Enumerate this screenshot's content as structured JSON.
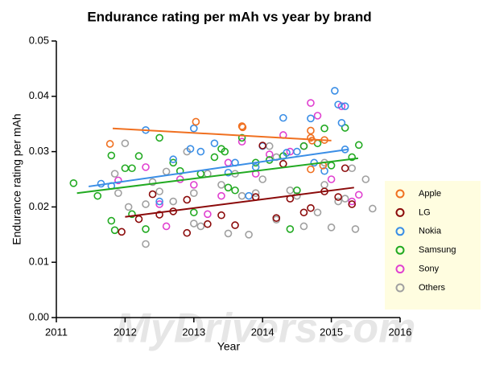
{
  "chart_data": {
    "type": "scatter",
    "title": "Endurance rating per mAh vs year by brand",
    "x_label": "Year",
    "y_label": "Endurance rating per mAh",
    "watermark": "MyDrivers.com",
    "xlim": [
      2011,
      2016
    ],
    "xticks": [
      2011,
      2012,
      2013,
      2014,
      2015,
      2016
    ],
    "ylim": [
      0,
      0.05
    ],
    "yticks": [
      {
        "value": 0,
        "label": "0.00"
      },
      0.01,
      0.02,
      0.03,
      0.04,
      0.05
    ],
    "grid": false,
    "legend": "right",
    "series": [
      {
        "name": "Apple",
        "color": "#f07020",
        "x": [
          2011.78,
          2013.03,
          2013.7,
          2013.71,
          2014.7,
          2014.7,
          2014.72,
          2014.7,
          2014.88,
          2014.9
        ],
        "y": [
          0.0314,
          0.0354,
          0.0346,
          0.0344,
          0.0338,
          0.0325,
          0.032,
          0.0268,
          0.0275,
          0.0321
        ],
        "trend": {
          "x": [
            2011.82,
            2015.0
          ],
          "y": [
            0.0342,
            0.032
          ]
        }
      },
      {
        "name": "LG",
        "color": "#8b0a0a",
        "x": [
          2011.95,
          2012.2,
          2012.4,
          2012.5,
          2012.7,
          2012.9,
          2012.9,
          2013.2,
          2013.4,
          2013.6,
          2013.9,
          2014.0,
          2014.2,
          2014.3,
          2014.4,
          2014.6,
          2014.9,
          2015.2,
          2015.3,
          2015.1,
          2014.7
        ],
        "y": [
          0.0155,
          0.0178,
          0.0223,
          0.0186,
          0.0192,
          0.0153,
          0.0213,
          0.0169,
          0.0185,
          0.0167,
          0.0218,
          0.0311,
          0.018,
          0.0278,
          0.0215,
          0.019,
          0.0228,
          0.027,
          0.0205,
          0.0218,
          0.0198
        ],
        "trend": {
          "x": [
            2012.0,
            2015.33
          ],
          "y": [
            0.0182,
            0.0235
          ]
        }
      },
      {
        "name": "Nokia",
        "color": "#3a8ee6",
        "x": [
          2011.65,
          2011.8,
          2012.3,
          2012.5,
          2012.7,
          2012.95,
          2013.0,
          2013.1,
          2013.3,
          2013.5,
          2013.6,
          2013.8,
          2014.0,
          2014.3,
          2014.35,
          2014.5,
          2014.7,
          2014.75,
          2015.05,
          2015.1,
          2015.15,
          2015.2,
          2015.2,
          2014.9,
          2013.9
        ],
        "y": [
          0.0242,
          0.0238,
          0.0339,
          0.021,
          0.0286,
          0.0305,
          0.0342,
          0.03,
          0.0315,
          0.0262,
          0.028,
          0.022,
          0.031,
          0.0361,
          0.0298,
          0.03,
          0.036,
          0.028,
          0.041,
          0.0385,
          0.0352,
          0.0382,
          0.0304,
          0.0265,
          0.0272
        ],
        "trend": {
          "x": [
            2011.47,
            2015.24
          ],
          "y": [
            0.0237,
            0.0304
          ]
        }
      },
      {
        "name": "Samsung",
        "color": "#22aa22",
        "x": [
          2011.25,
          2011.6,
          2011.8,
          2011.8,
          2011.85,
          2012.0,
          2012.1,
          2012.2,
          2012.3,
          2012.5,
          2012.7,
          2012.8,
          2013.0,
          2013.1,
          2013.3,
          2013.4,
          2013.5,
          2013.6,
          2013.7,
          2013.9,
          2014.1,
          2014.3,
          2014.4,
          2014.5,
          2014.6,
          2014.8,
          2014.9,
          2015.0,
          2015.2,
          2015.3,
          2015.4,
          2012.1,
          2013.45
        ],
        "y": [
          0.0243,
          0.022,
          0.0293,
          0.0175,
          0.0158,
          0.027,
          0.0187,
          0.0292,
          0.016,
          0.0325,
          0.028,
          0.0265,
          0.019,
          0.026,
          0.029,
          0.0305,
          0.0235,
          0.023,
          0.0325,
          0.028,
          0.0285,
          0.0292,
          0.016,
          0.023,
          0.031,
          0.0315,
          0.0342,
          0.0275,
          0.0343,
          0.029,
          0.0312,
          0.027,
          0.03
        ],
        "trend": {
          "x": [
            2011.3,
            2015.39
          ],
          "y": [
            0.0225,
            0.0288
          ]
        }
      },
      {
        "name": "Sony",
        "color": "#e040d0",
        "x": [
          2011.9,
          2012.3,
          2012.5,
          2012.6,
          2012.8,
          2013.0,
          2013.2,
          2013.4,
          2013.5,
          2013.7,
          2013.9,
          2014.1,
          2014.3,
          2014.4,
          2014.7,
          2014.8,
          2015.0,
          2015.15,
          2015.3,
          2015.4,
          2014.6
        ],
        "y": [
          0.0248,
          0.0272,
          0.0205,
          0.0165,
          0.025,
          0.024,
          0.0187,
          0.022,
          0.028,
          0.0318,
          0.026,
          0.0295,
          0.033,
          0.03,
          0.0388,
          0.0365,
          0.025,
          0.0382,
          0.021,
          0.0222,
          0.031
        ]
      },
      {
        "name": "Others",
        "color": "#a0a0a0",
        "x": [
          2011.85,
          2011.9,
          2012.0,
          2012.05,
          2012.3,
          2012.4,
          2012.5,
          2012.6,
          2012.7,
          2012.9,
          2013.0,
          2013.1,
          2013.2,
          2013.4,
          2013.5,
          2013.6,
          2013.7,
          2013.8,
          2013.9,
          2014.0,
          2014.1,
          2014.2,
          2014.4,
          2014.5,
          2014.6,
          2014.8,
          2014.9,
          2015.0,
          2015.1,
          2015.2,
          2015.3,
          2015.5,
          2015.6,
          2012.3,
          2013.0,
          2014.2,
          2014.9,
          2015.35
        ],
        "y": [
          0.026,
          0.0225,
          0.0315,
          0.02,
          0.0133,
          0.0245,
          0.0228,
          0.0264,
          0.021,
          0.03,
          0.0225,
          0.0165,
          0.026,
          0.024,
          0.0152,
          0.026,
          0.022,
          0.015,
          0.0225,
          0.025,
          0.031,
          0.0177,
          0.023,
          0.022,
          0.0165,
          0.019,
          0.028,
          0.0163,
          0.021,
          0.0215,
          0.027,
          0.025,
          0.0197,
          0.0205,
          0.017,
          0.029,
          0.024,
          0.016
        ]
      }
    ]
  }
}
